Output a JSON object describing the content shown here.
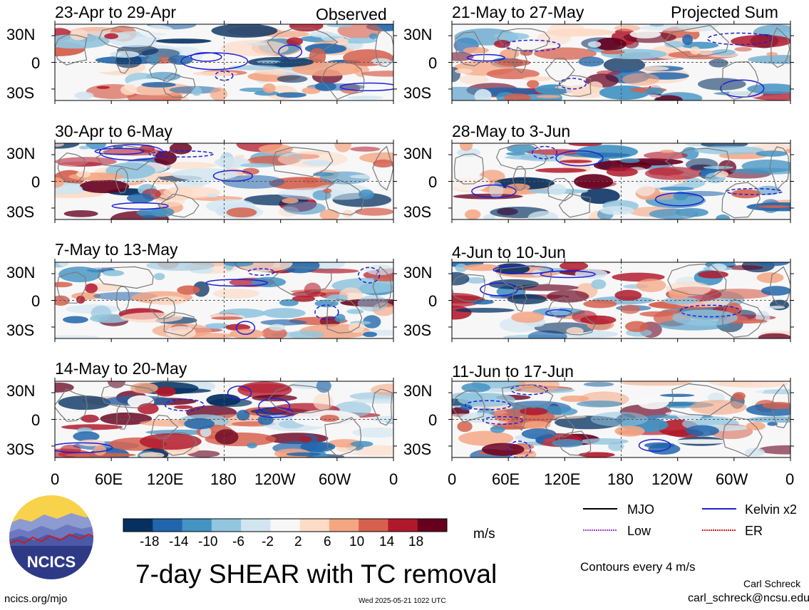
{
  "figure": {
    "main_title": "7-day SHEAR with TC removal",
    "header_left": "Observed",
    "header_right": "Projected Sum",
    "colorbar_unit": "m/s",
    "contour_note": "Contours every 4 m/s",
    "author": "Carl Schreck",
    "email": "carl_schreck@ncsu.edu",
    "url": "ncics.org/mjo",
    "timestamp": "Wed 2025-05-21 1022 UTC",
    "logo_text": "NCICS"
  },
  "legend": [
    {
      "label": "MJO",
      "color": "#000000"
    },
    {
      "label": "Kelvin x2",
      "color": "#1f1fd6"
    },
    {
      "label": "Low",
      "color": "#a040c0"
    },
    {
      "label": "ER",
      "color": "#cc2020"
    }
  ],
  "chart_data": {
    "type": "heatmap",
    "variable": "7-day SHEAR with TC removal",
    "unit": "m/s",
    "contour_interval": "Contours every 4 m/s",
    "x_ticks": [
      "0",
      "60E",
      "120E",
      "180",
      "120W",
      "60W",
      "0"
    ],
    "y_ticks": [
      "30N",
      "0",
      "30S"
    ],
    "colorbar_ticks": [
      "-18",
      "-14",
      "-10",
      "-6",
      "-2",
      "2",
      "6",
      "10",
      "14",
      "18"
    ],
    "colorbar_colors": [
      "#053061",
      "#2166ac",
      "#4393c3",
      "#92c5de",
      "#d1e5f0",
      "#f7f7f7",
      "#fddbc7",
      "#f4a582",
      "#d6604d",
      "#b2182b",
      "#67001f"
    ],
    "panels_observed": [
      {
        "period": "23-Apr to 29-Apr"
      },
      {
        "period": "30-Apr to 6-May"
      },
      {
        "period": "7-May to 13-May"
      },
      {
        "period": "14-May to 20-May"
      }
    ],
    "panels_projected": [
      {
        "period": "21-May to 27-May"
      },
      {
        "period": "28-May to 3-Jun"
      },
      {
        "period": "4-Jun to 10-Jun"
      },
      {
        "period": "11-Jun to 17-Jun"
      }
    ]
  }
}
